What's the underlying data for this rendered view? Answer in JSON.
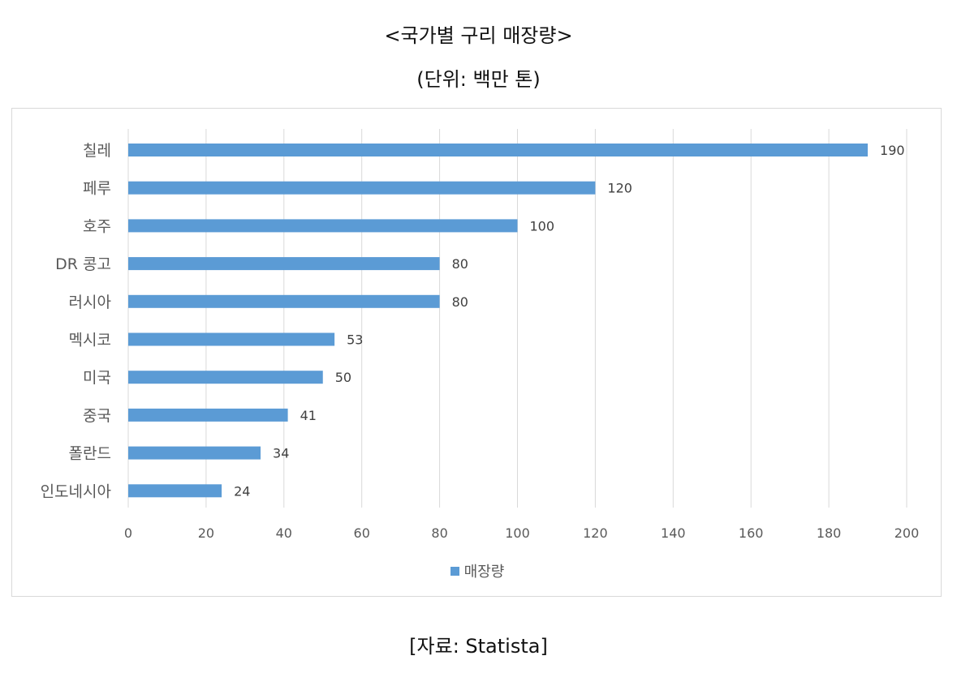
{
  "title_line1": "<국가별 구리 매장량>",
  "title_line2": "(단위: 백만 톤)",
  "source": "[자료: Statista]",
  "bar_color": "#5b9bd5",
  "chart_data": {
    "type": "bar",
    "orientation": "horizontal",
    "categories": [
      "칠레",
      "페루",
      "호주",
      "DR 콩고",
      "러시아",
      "멕시코",
      "미국",
      "중국",
      "폴란드",
      "인도네시아"
    ],
    "series": [
      {
        "name": "매장량",
        "values": [
          190,
          120,
          100,
          80,
          80,
          53,
          50,
          41,
          34,
          24
        ]
      }
    ],
    "xlim": [
      0,
      200
    ],
    "x_ticks": [
      0,
      20,
      40,
      60,
      80,
      100,
      120,
      140,
      160,
      180,
      200
    ],
    "grid": true,
    "legend": "bottom"
  }
}
